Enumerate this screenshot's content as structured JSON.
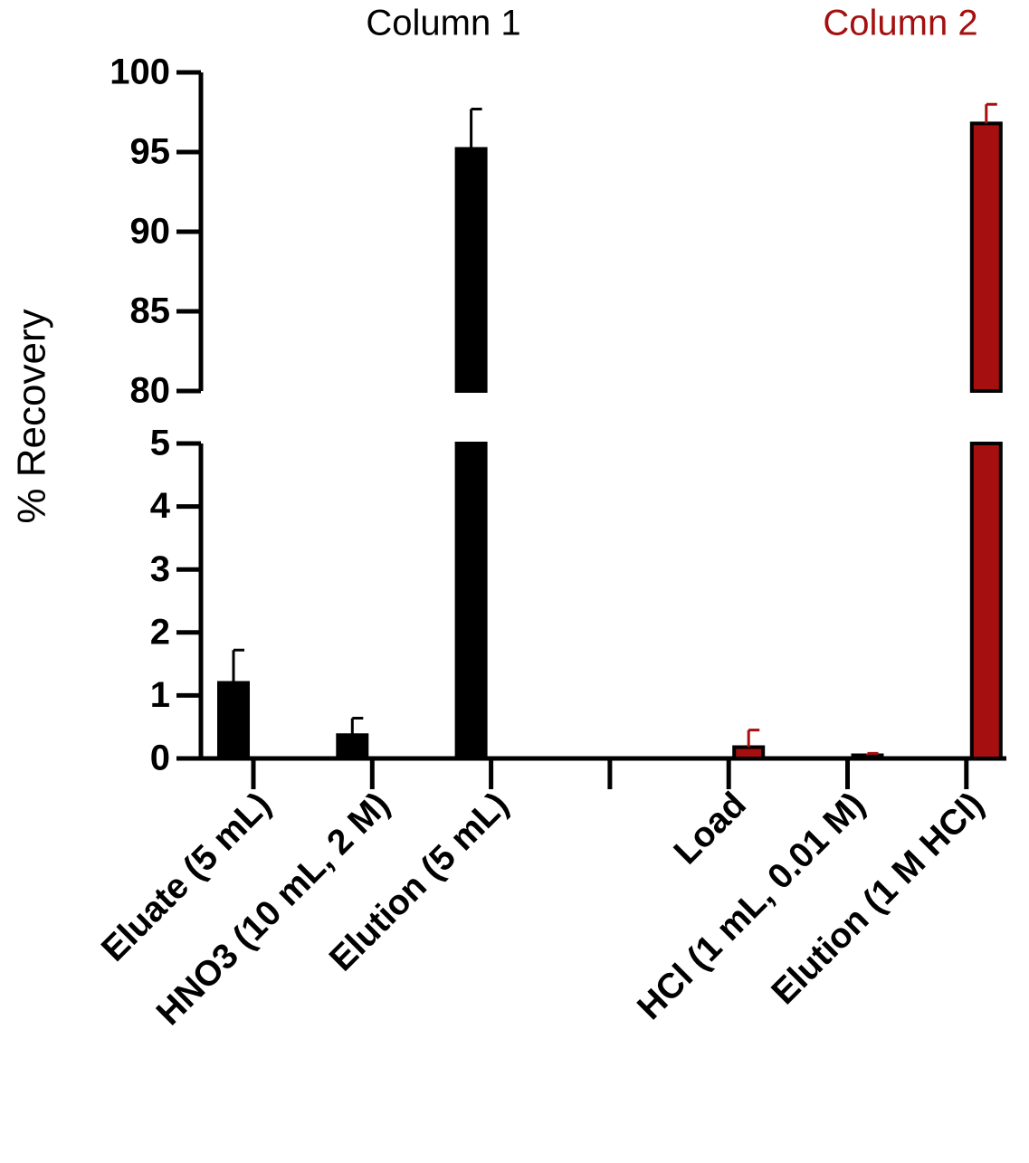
{
  "chart_data": {
    "type": "bar",
    "y_label": "% Recovery",
    "categories": [
      "Eluate (5 mL)",
      "HNO3 (10 mL, 2 M)",
      "Elution (5 mL)",
      null,
      "Load",
      "HCl (1 mL, 0.01 M)",
      "Elution (1 M HCl)"
    ],
    "series": [
      {
        "name": "Column 1",
        "color": "#000000",
        "values": [
          1.2,
          0.37,
          95.2,
          null,
          null,
          null,
          null
        ],
        "errors": [
          0.52,
          0.27,
          2.5,
          null,
          null,
          null,
          null
        ]
      },
      {
        "name": "Column 2",
        "color": "#a50f0f",
        "values": [
          null,
          null,
          null,
          null,
          0.18,
          0.05,
          96.8
        ],
        "errors": [
          null,
          null,
          null,
          null,
          0.27,
          0.03,
          1.2
        ]
      }
    ],
    "y_segments": [
      {
        "ylim": [
          0,
          5
        ],
        "yticks": [
          0,
          1,
          2,
          3,
          4,
          5
        ]
      },
      {
        "ylim": [
          80,
          100
        ],
        "yticks": [
          80,
          85,
          90,
          95,
          100
        ]
      }
    ]
  }
}
